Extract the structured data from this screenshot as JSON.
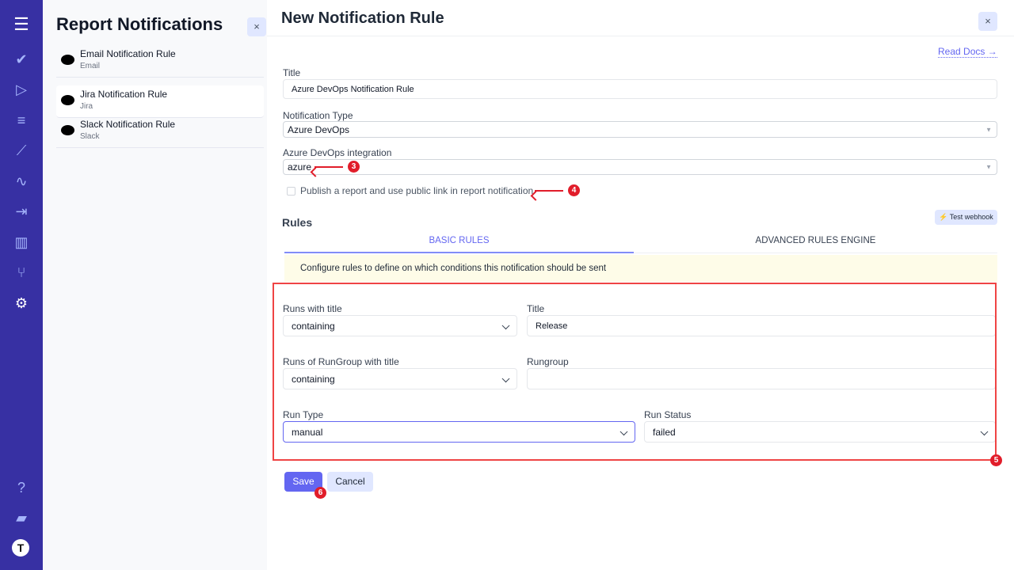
{
  "nav": {
    "top_icons": [
      "menu-icon",
      "check-icon",
      "play-icon",
      "checklist-icon",
      "steps-icon",
      "pulse-icon",
      "import-icon",
      "chart-icon",
      "branch-icon",
      "settings-icon"
    ],
    "bottom_icons": [
      "help-icon",
      "folder-icon",
      "profile-icon"
    ]
  },
  "panel": {
    "title": "Report Notifications",
    "close": "×",
    "items": [
      {
        "title": "Email Notification Rule",
        "sub": "Email"
      },
      {
        "title": "Jira Notification Rule",
        "sub": "Jira"
      },
      {
        "title": "Slack Notification Rule",
        "sub": "Slack"
      }
    ]
  },
  "main": {
    "title": "New Notification Rule",
    "close": "×",
    "read_docs": "Read Docs →",
    "fields": {
      "title_label": "Title",
      "title_value": "Azure DevOps Notification Rule",
      "type_label": "Notification Type",
      "type_value": "Azure DevOps",
      "integration_label": "Azure DevOps integration",
      "integration_value": "azure",
      "publish_label": "Publish a report and use public link in report notification",
      "publish_checked": false
    },
    "rules": {
      "heading": "Rules",
      "test_webhook": "Test webhook",
      "tabs": [
        "BASIC RULES",
        "ADVANCED RULES ENGINE"
      ],
      "note": "Configure rules to define on which conditions this notification should be sent",
      "runs_title_label": "Runs with title",
      "runs_title_value": "containing",
      "title_label": "Title",
      "title_value": "Release",
      "rungroup_cond_label": "Runs of RunGroup with title",
      "rungroup_cond_value": "containing",
      "rungroup_label": "Rungroup",
      "rungroup_value": "",
      "run_type_label": "Run Type",
      "run_type_value": "manual",
      "run_status_label": "Run Status",
      "run_status_value": "failed"
    },
    "save": "Save",
    "cancel": "Cancel"
  },
  "annotations": {
    "a3": "3",
    "a4": "4",
    "a5": "5",
    "a6": "6",
    "color": "#e11d2a"
  },
  "colors": {
    "nav": "#3730a3",
    "accent": "#6366f1"
  }
}
